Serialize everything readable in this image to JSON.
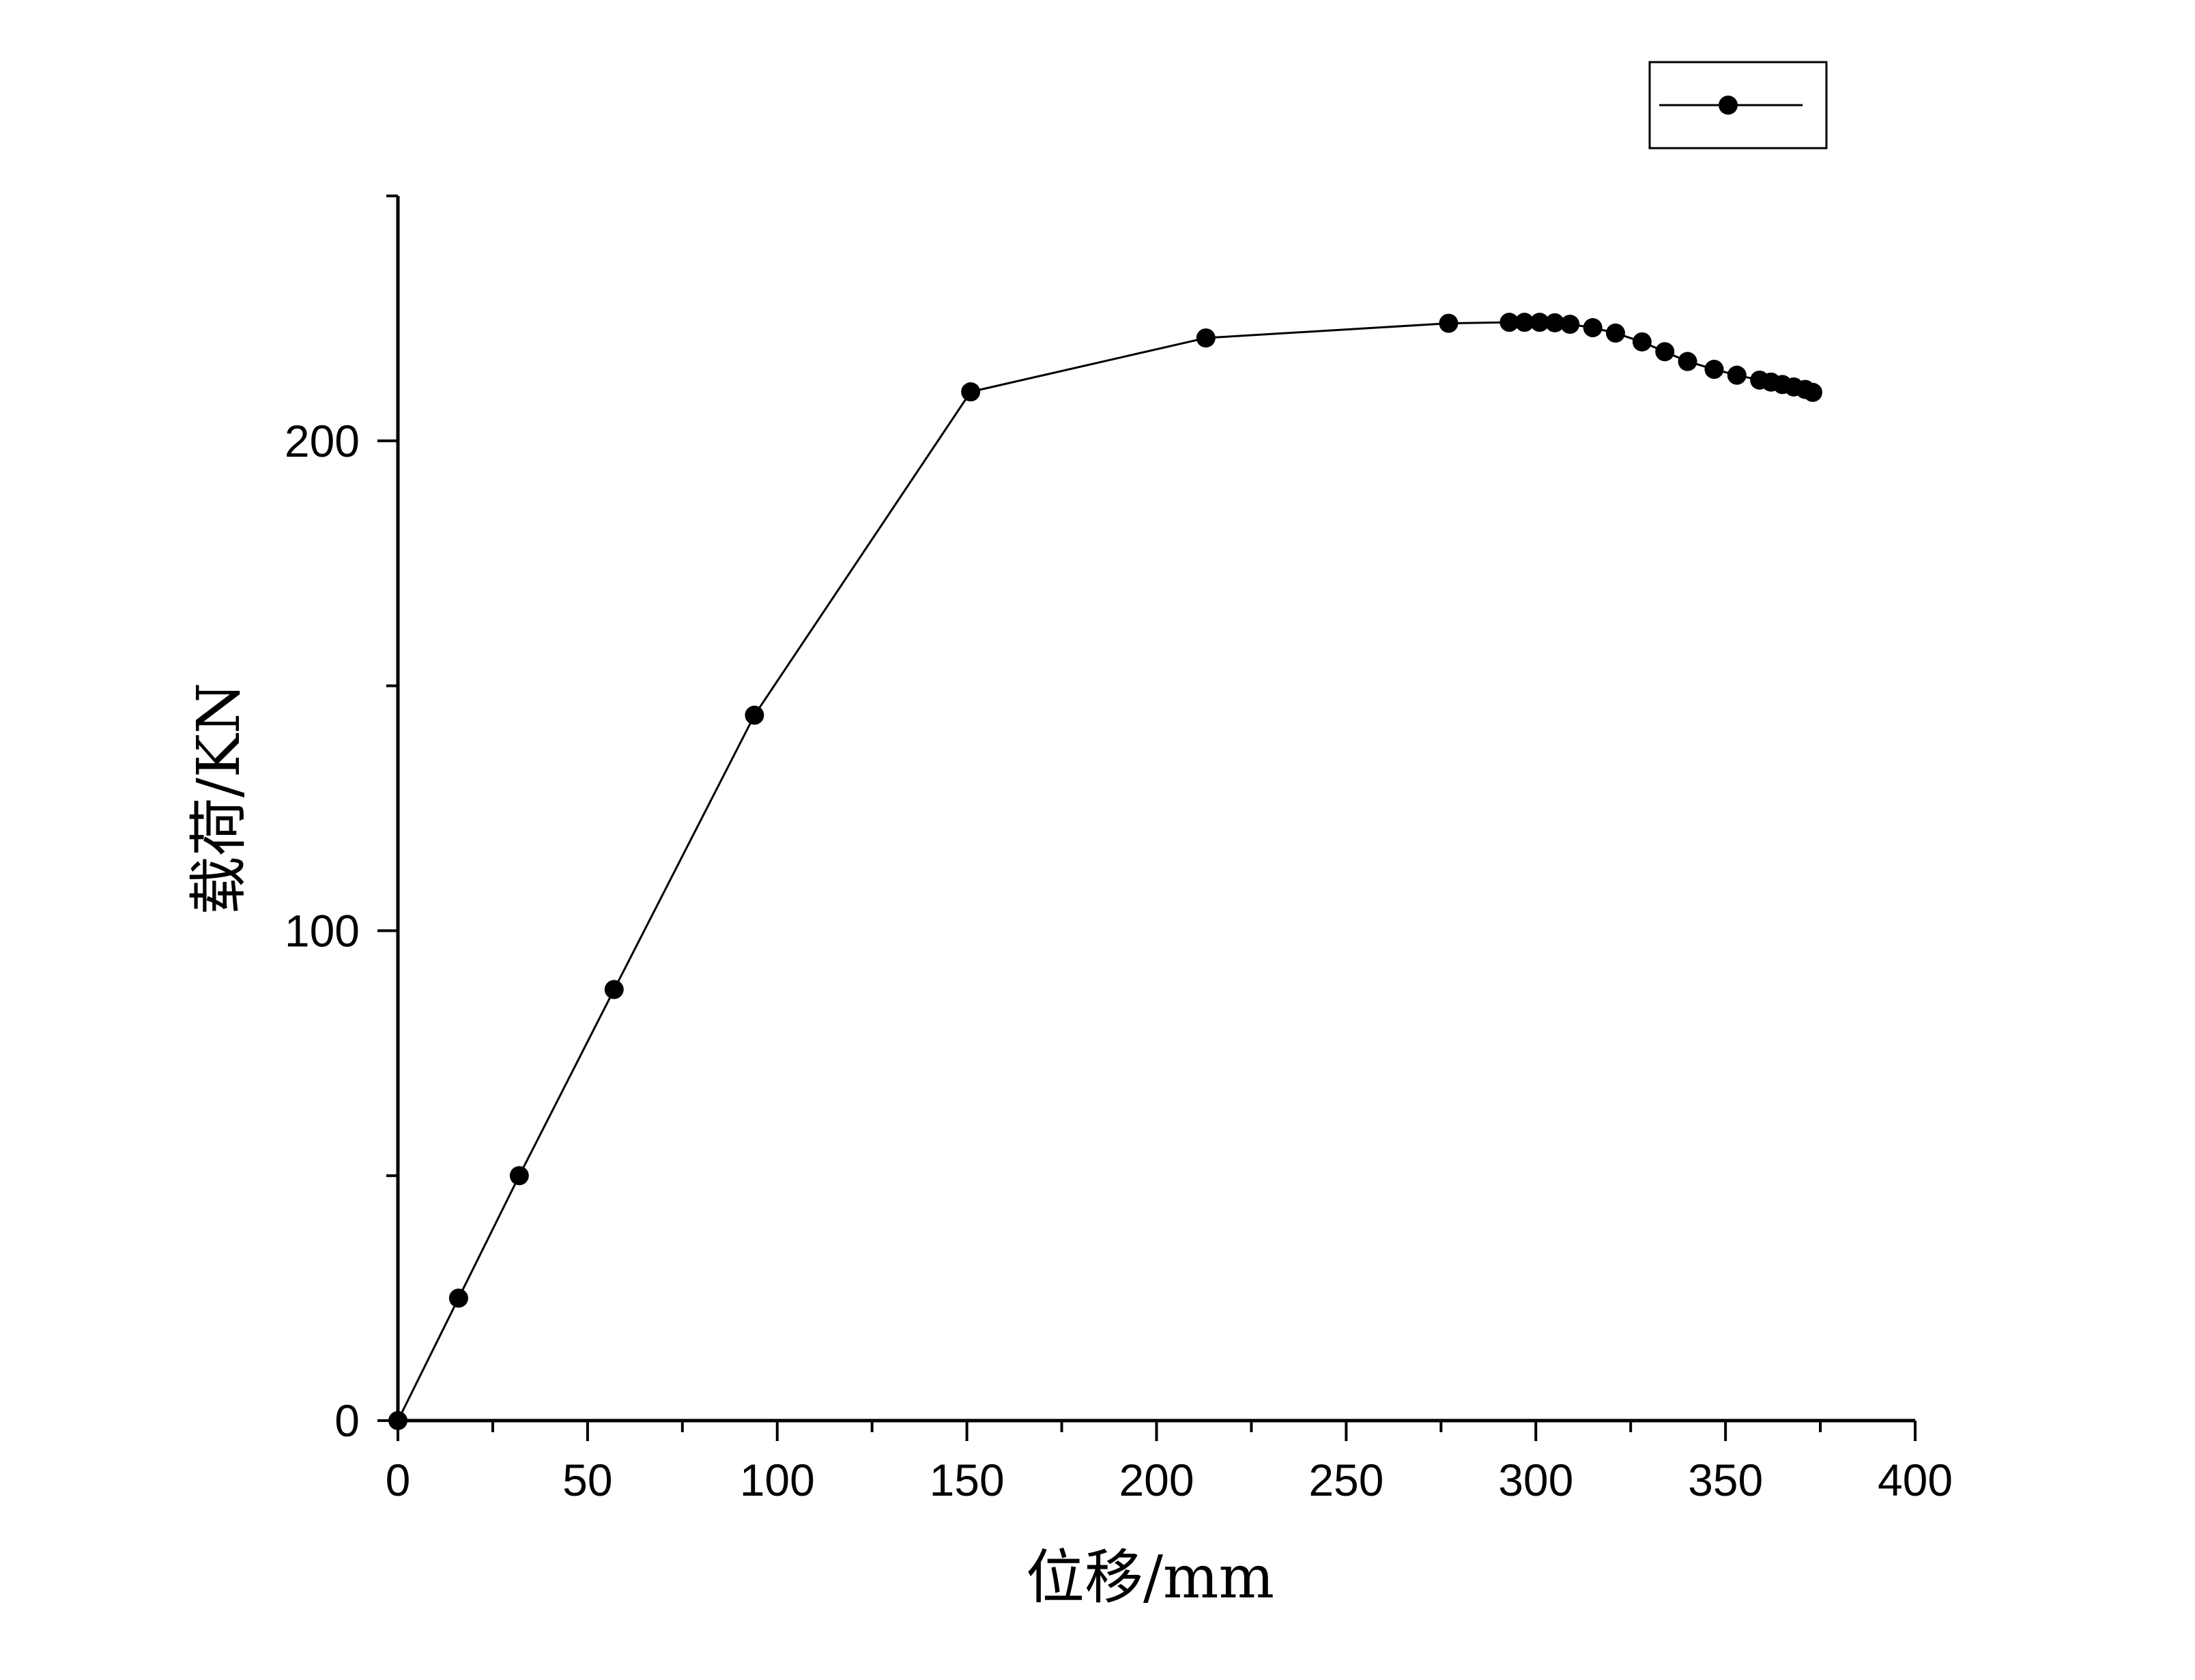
{
  "chart_data": {
    "type": "line",
    "xlabel": "位移/mm",
    "ylabel": "载荷/KN",
    "xlim": [
      0,
      400
    ],
    "ylim": [
      0,
      250
    ],
    "xticks": [
      0,
      50,
      100,
      150,
      200,
      250,
      300,
      350,
      400
    ],
    "xtick_labels": [
      "0",
      "50",
      "100",
      "150",
      "200",
      "250",
      "300",
      "350",
      "400"
    ],
    "yticks": [
      0,
      100,
      200
    ],
    "ytick_labels": [
      "0",
      "100",
      "200"
    ],
    "grid": false,
    "legend": {
      "placement": "top-right",
      "entries": [
        ""
      ]
    },
    "series": [
      {
        "marker": "circle",
        "color": "#000000",
        "x": [
          0,
          16,
          32,
          57,
          94,
          151,
          213,
          277,
          293,
          297,
          301,
          305,
          309,
          315,
          321,
          328,
          334,
          340,
          347,
          353,
          359,
          362,
          365,
          368,
          371,
          373
        ],
        "y": [
          0,
          25,
          50,
          88,
          144,
          210,
          221,
          224,
          224.2,
          224.2,
          224.2,
          224.1,
          223.8,
          223.1,
          222,
          220.2,
          218.2,
          216.2,
          214.6,
          213.4,
          212.4,
          212,
          211.5,
          211,
          210.5,
          209.9
        ]
      }
    ]
  }
}
